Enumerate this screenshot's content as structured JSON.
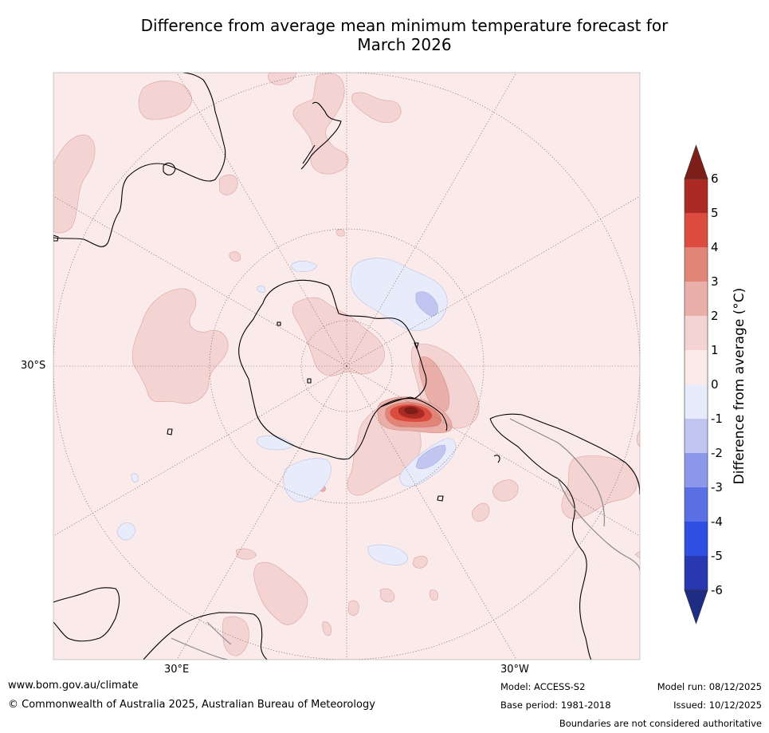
{
  "title": {
    "line1": "Difference from average mean minimum temperature forecast for",
    "line2": "March 2026"
  },
  "map": {
    "projection": "south polar stereographic",
    "labels": {
      "lat_30s": "30°S",
      "lon_30e": "30°E",
      "lon_30w": "30°W"
    },
    "colors": {
      "ocean_base": "#fbeaea",
      "anom_0_1": "#fbeaea",
      "anom_1_2": "#f4d4d3",
      "anom_2_3": "#ebafa9",
      "anom_3_4": "#e38478",
      "anom_4_5": "#db4b3e",
      "anom_5_6": "#ab2b24",
      "anom_gt_6": "#7e1e18",
      "anom_m1_0": "#e8ecfa",
      "anom_m2_m1": "#c0c6f0",
      "coast": "#000000",
      "boundary": "#888888"
    }
  },
  "legend": {
    "label": "Difference from average (°C)",
    "ticks": [
      "6",
      "5",
      "4",
      "3",
      "2",
      "1",
      "0",
      "-1",
      "-2",
      "-3",
      "-4",
      "-5",
      "-6"
    ],
    "bins": [
      {
        "range": "5 to 6",
        "color": "#ab2b24"
      },
      {
        "range": "4 to 5",
        "color": "#db4b3e"
      },
      {
        "range": "3 to 4",
        "color": "#e38478"
      },
      {
        "range": "2 to 3",
        "color": "#ebafa9"
      },
      {
        "range": "1 to 2",
        "color": "#f4d4d3"
      },
      {
        "range": "0 to 1",
        "color": "#fbeaea"
      },
      {
        "range": "-1 to 0",
        "color": "#e8ecfa"
      },
      {
        "range": "-2 to -1",
        "color": "#c0c6f0"
      },
      {
        "range": "-3 to -2",
        "color": "#8c99eb"
      },
      {
        "range": "-4 to -3",
        "color": "#5b70e4"
      },
      {
        "range": "-5 to -4",
        "color": "#2e4fe0"
      },
      {
        "range": "-6 to -5",
        "color": "#2838b0"
      }
    ],
    "over_color": "#7e1e18",
    "under_color": "#1e2c84"
  },
  "footer": {
    "url": "www.bom.gov.au/climate",
    "copyright": "© Commonwealth of Australia 2025, Australian Bureau of Meteorology",
    "model": "Model: ACCESS-S2",
    "base_period": "Base period: 1981-2018",
    "model_run": "Model run: 08/12/2025",
    "issued": "Issued: 10/12/2025",
    "disclaimer": "Boundaries are not considered authoritative"
  }
}
